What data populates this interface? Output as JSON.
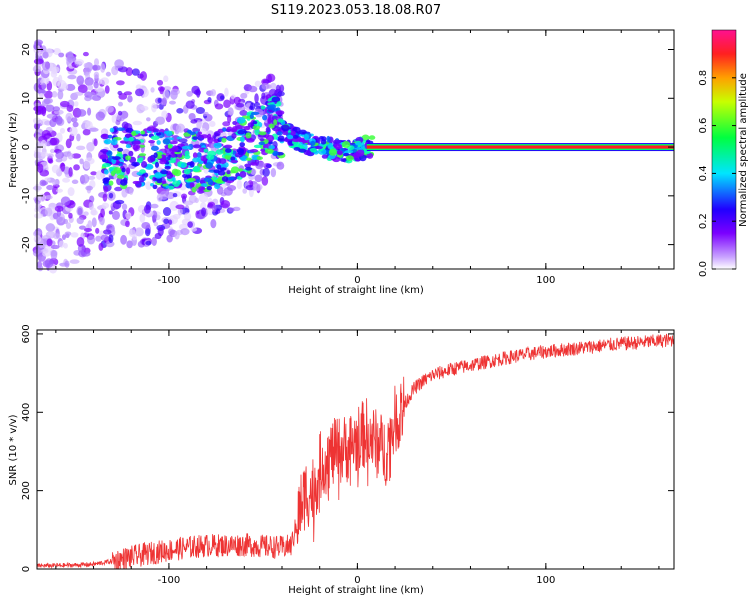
{
  "title": "S119.2023.053.18.08.R07",
  "chart_data": [
    {
      "type": "heatmap",
      "name": "spectrogram",
      "xlabel": "Height of straight line (km)",
      "ylabel": "Frequency (Hz)",
      "xlim": [
        -170,
        168
      ],
      "ylim": [
        -25,
        24
      ],
      "xticks": [
        -100,
        0,
        100
      ],
      "yticks": [
        -20,
        -10,
        0,
        10,
        20
      ],
      "colorbar": {
        "label": "Normalized spectral amplitude",
        "range": [
          0,
          1
        ],
        "ticks": [
          "0.0",
          "0.2",
          "0.4",
          "0.6",
          "0.8"
        ]
      },
      "description_points": [
        {
          "x": -120,
          "y": -2
        },
        {
          "x": -80,
          "y": -3
        },
        {
          "x": -60,
          "y": 0
        },
        {
          "x": -45,
          "y": 5
        },
        {
          "x": -35,
          "y": 2
        },
        {
          "x": -20,
          "y": 0
        },
        {
          "x": -5,
          "y": -1
        },
        {
          "x": 5,
          "y": 0
        },
        {
          "x": 100,
          "y": 0
        },
        {
          "x": 168,
          "y": 0
        }
      ]
    },
    {
      "type": "line",
      "name": "snr",
      "xlabel": "Height of straight line (km)",
      "ylabel": "SNR (10 * v/v)",
      "xlim": [
        -170,
        168
      ],
      "ylim": [
        0,
        610
      ],
      "xticks": [
        -100,
        0,
        100
      ],
      "yticks": [
        0,
        200,
        400,
        600
      ],
      "color": "#ee3333",
      "series": [
        {
          "name": "SNR",
          "x": [
            -170,
            -150,
            -140,
            -130,
            -120,
            -110,
            -100,
            -90,
            -80,
            -70,
            -60,
            -50,
            -40,
            -35,
            -30,
            -27,
            -25,
            -22,
            -20,
            -15,
            -10,
            -5,
            0,
            5,
            10,
            15,
            20,
            25,
            30,
            35,
            40,
            50,
            60,
            70,
            80,
            90,
            100,
            110,
            120,
            130,
            140,
            150,
            160,
            168
          ],
          "y": [
            8,
            10,
            12,
            20,
            30,
            40,
            48,
            55,
            60,
            60,
            62,
            58,
            55,
            60,
            160,
            200,
            190,
            220,
            260,
            290,
            300,
            310,
            330,
            350,
            320,
            300,
            380,
            420,
            460,
            480,
            495,
            510,
            520,
            530,
            540,
            548,
            555,
            560,
            565,
            570,
            575,
            578,
            582,
            585
          ]
        }
      ]
    }
  ]
}
